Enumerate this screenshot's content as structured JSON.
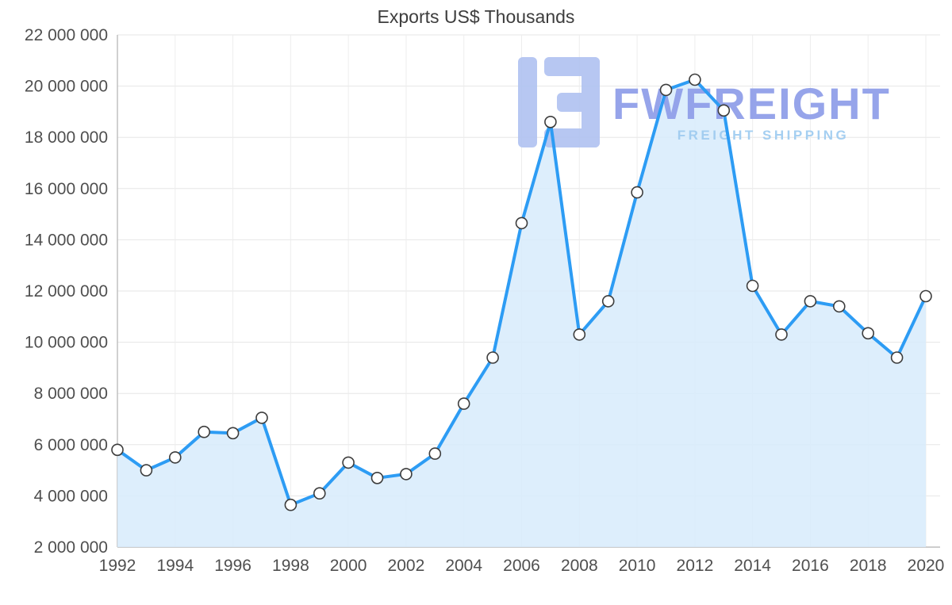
{
  "page": {
    "title": "Exports US$ Thousands"
  },
  "watermark": {
    "brand": "FWFREIGHT",
    "tagline": "FREIGHT SHIPPING",
    "brand_color": "#8e9de9",
    "tagline_color": "#9ecbf0",
    "logo_color": "#b1c3f1"
  },
  "chart_data": {
    "type": "area",
    "title": "Exports US$ Thousands",
    "xlabel": "",
    "ylabel": "",
    "x": [
      1992,
      1993,
      1994,
      1995,
      1996,
      1997,
      1998,
      1999,
      2000,
      2001,
      2002,
      2003,
      2004,
      2005,
      2006,
      2007,
      2008,
      2009,
      2010,
      2011,
      2012,
      2013,
      2014,
      2015,
      2016,
      2017,
      2018,
      2019,
      2020
    ],
    "series": [
      {
        "name": "Exports US$ Thousands",
        "values": [
          5800000,
          5000000,
          5500000,
          6500000,
          6450000,
          7050000,
          3650000,
          4100000,
          5300000,
          4700000,
          4850000,
          5650000,
          7600000,
          9400000,
          14650000,
          18600000,
          10300000,
          11600000,
          15850000,
          19850000,
          20250000,
          19050000,
          12200000,
          10300000,
          11600000,
          11400000,
          10350000,
          9400000,
          11800000
        ]
      }
    ],
    "ylim": [
      2000000,
      22000000
    ],
    "y_tick_values": [
      2000000,
      4000000,
      6000000,
      8000000,
      10000000,
      12000000,
      14000000,
      16000000,
      18000000,
      20000000,
      22000000
    ],
    "y_tick_labels": [
      "2 000 000",
      "4 000 000",
      "6 000 000",
      "8 000 000",
      "10 000 000",
      "12 000 000",
      "14 000 000",
      "16 000 000",
      "18 000 000",
      "20 000 000",
      "22 000 000"
    ],
    "x_ticks": [
      1992,
      1994,
      1996,
      1998,
      2000,
      2002,
      2004,
      2006,
      2008,
      2010,
      2012,
      2014,
      2016,
      2018,
      2020
    ],
    "grid": true,
    "legend": false,
    "line_color": "#2d9cf4",
    "fill_color": "#d7ebfc",
    "marker": {
      "fill": "#ffffff",
      "stroke": "#3d3d3d"
    },
    "grid_color": "#e6e6e6",
    "axis_color": "#bdbdbd",
    "tick_label_color": "#4f4f4f"
  }
}
